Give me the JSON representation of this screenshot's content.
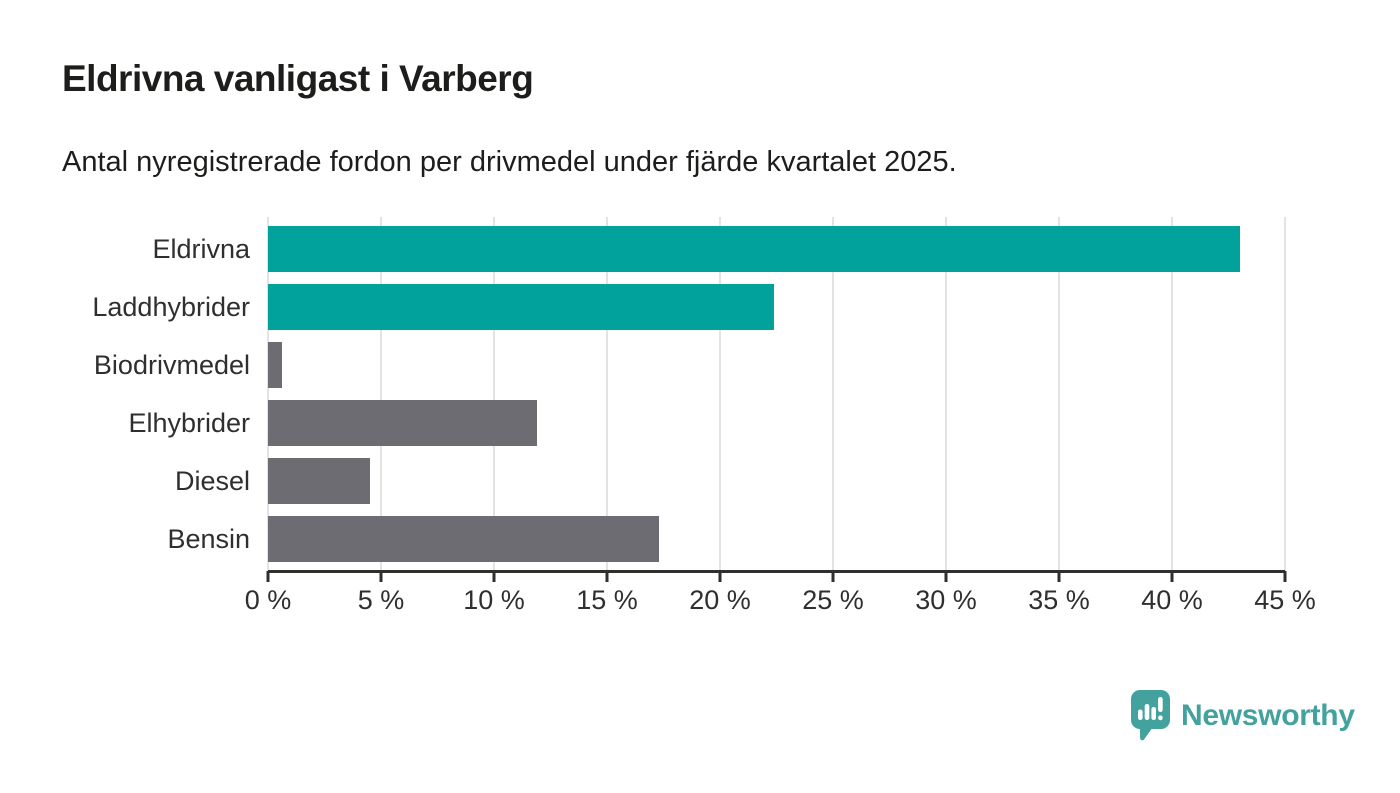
{
  "header": {
    "title": "Eldrivna vanligast i Varberg",
    "subtitle": "Antal nyregistrerade fordon per drivmedel under fjärde kvartalet 2025."
  },
  "chart_data": {
    "type": "bar",
    "orientation": "horizontal",
    "title": "Eldrivna vanligast i Varberg",
    "subtitle": "Antal nyregistrerade fordon per drivmedel under fjärde kvartalet 2025.",
    "categories": [
      "Eldrivna",
      "Laddhybrider",
      "Biodrivmedel",
      "Elhybrider",
      "Diesel",
      "Bensin"
    ],
    "values": [
      43.0,
      22.4,
      0.6,
      11.9,
      4.5,
      17.3
    ],
    "unit": "%",
    "xlim": [
      0,
      45
    ],
    "x_ticks": [
      0,
      5,
      10,
      15,
      20,
      25,
      30,
      35,
      40,
      45
    ],
    "x_tick_labels": [
      "0 %",
      "5 %",
      "10 %",
      "15 %",
      "20 %",
      "25 %",
      "30 %",
      "35 %",
      "40 %",
      "45 %"
    ],
    "bar_colors": [
      "#00a29b",
      "#00a29b",
      "#6c6c72",
      "#6c6c72",
      "#6c6c72",
      "#6c6c72"
    ],
    "grid": "vertical-gridlines",
    "legend": "none"
  },
  "colors": {
    "accent_teal": "#00a29b",
    "bar_gray": "#6c6c72",
    "gridline": "#e3e3e3",
    "axis": "#2f2f2f",
    "text": "#1d1d1b",
    "logo_teal": "#43a29e"
  },
  "footer": {
    "brand": "Newsworthy"
  }
}
